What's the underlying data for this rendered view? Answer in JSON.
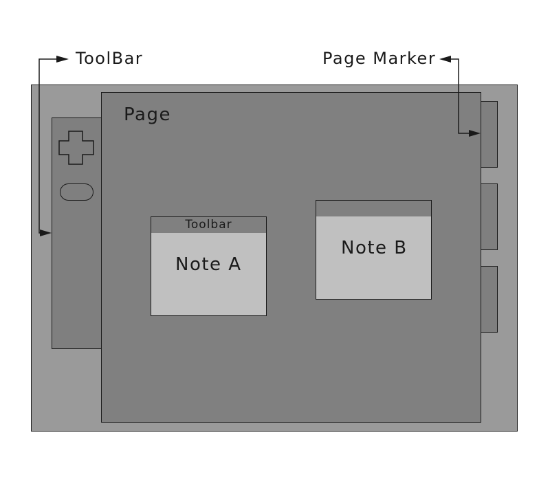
{
  "callouts": {
    "toolbar": "ToolBar",
    "page_marker": "Page Marker"
  },
  "page": {
    "label": "Page"
  },
  "notes": [
    {
      "header_label": "Toolbar",
      "title": "Note A"
    },
    {
      "header_label": "",
      "title": "Note B"
    }
  ],
  "toolbar_panel": {
    "buttons": [
      "plus-icon",
      "oval-button"
    ]
  },
  "page_markers": [
    "page-marker-1",
    "page-marker-2",
    "page-marker-3"
  ],
  "colors": {
    "canvas": "#9a9a9a",
    "toolbar_panel": "#7f7f7f",
    "page": "#808080",
    "page_marker": "#7f7f7f",
    "note_header": "#808080",
    "note_body": "#c0c0c0",
    "stroke": "#1a1a1a"
  }
}
